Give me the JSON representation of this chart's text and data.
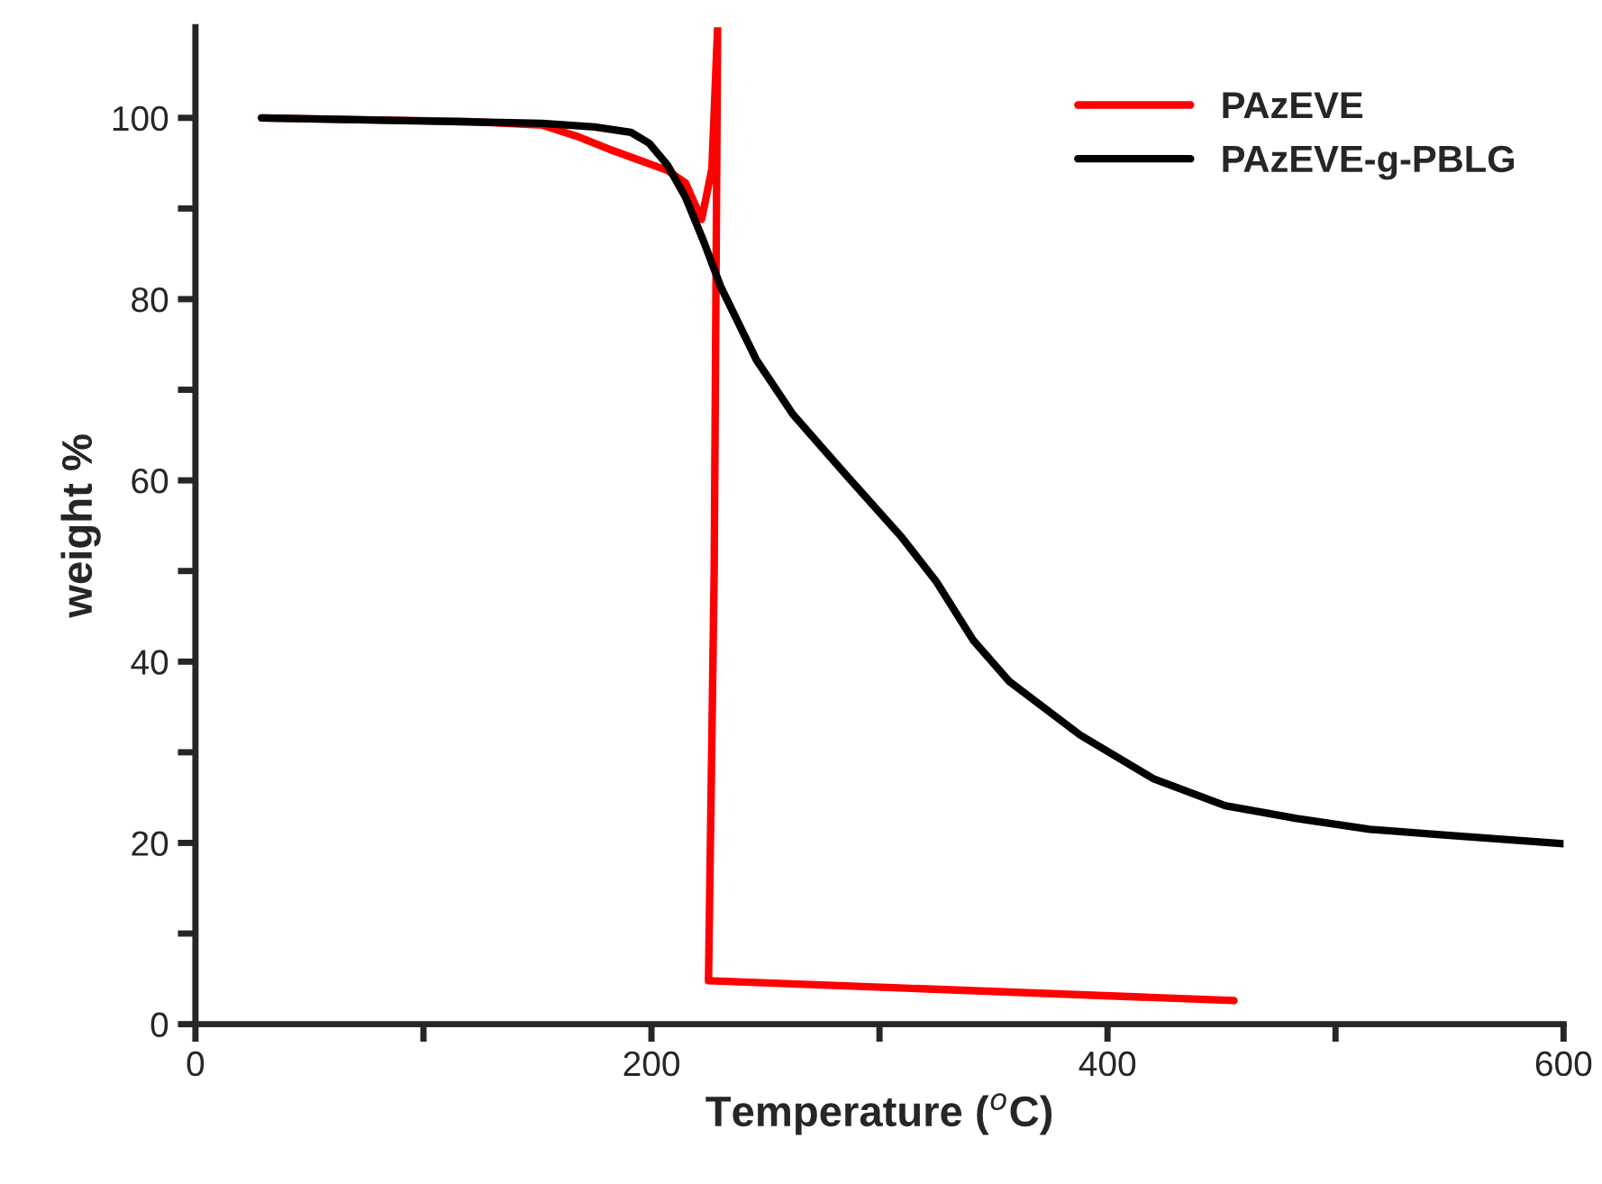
{
  "chart_data": {
    "type": "line",
    "xlabel": "Temperature ($^{o}$C)",
    "ylabel": "weight %",
    "xlim": [
      0,
      600
    ],
    "ylim": [
      0,
      110
    ],
    "xticks": [
      0,
      {
        "value": 100,
        "label": null
      },
      200,
      {
        "value": 300,
        "label": null
      },
      400,
      {
        "value": 500,
        "label": null
      },
      600
    ],
    "yticks": [
      0,
      {
        "value": 10,
        "label": null
      },
      20,
      {
        "value": 30,
        "label": null
      },
      40,
      {
        "value": 50,
        "label": null
      },
      60,
      {
        "value": 70,
        "label": null
      },
      80,
      {
        "value": 90,
        "label": null
      },
      100
    ],
    "legend": "top right",
    "grid": false,
    "line_style": "solid",
    "marker": "none",
    "series": [
      {
        "name": "PAzEVE",
        "color": "#ff0000",
        "x": [
          29,
          73,
          120,
          152,
          167,
          183,
          207,
          215,
          222,
          226.5,
          229,
          227.5,
          225,
          455.5
        ],
        "values": [
          100,
          99.8,
          99.6,
          99.2,
          98,
          96.4,
          94.2,
          92.8,
          88.8,
          94.4,
          110,
          50,
          4.8,
          2.6
        ]
      },
      {
        "name": "PAzEVE-g-PBLG",
        "color": "#000000",
        "x": [
          29,
          112,
          152,
          175,
          191,
          199,
          207,
          215,
          223,
          230.5,
          246,
          262,
          286,
          309.5,
          325,
          341,
          357,
          388,
          420,
          451.6,
          483,
          515,
          546,
          600
        ],
        "values": [
          100,
          99.6,
          99.4,
          99,
          98.4,
          97.2,
          94.8,
          91.2,
          86.3,
          81.3,
          73.3,
          67.3,
          60.4,
          53.8,
          48.8,
          42.4,
          37.8,
          31.9,
          27.1,
          24.1,
          22.7,
          21.5,
          20.9,
          19.9
        ]
      }
    ]
  }
}
